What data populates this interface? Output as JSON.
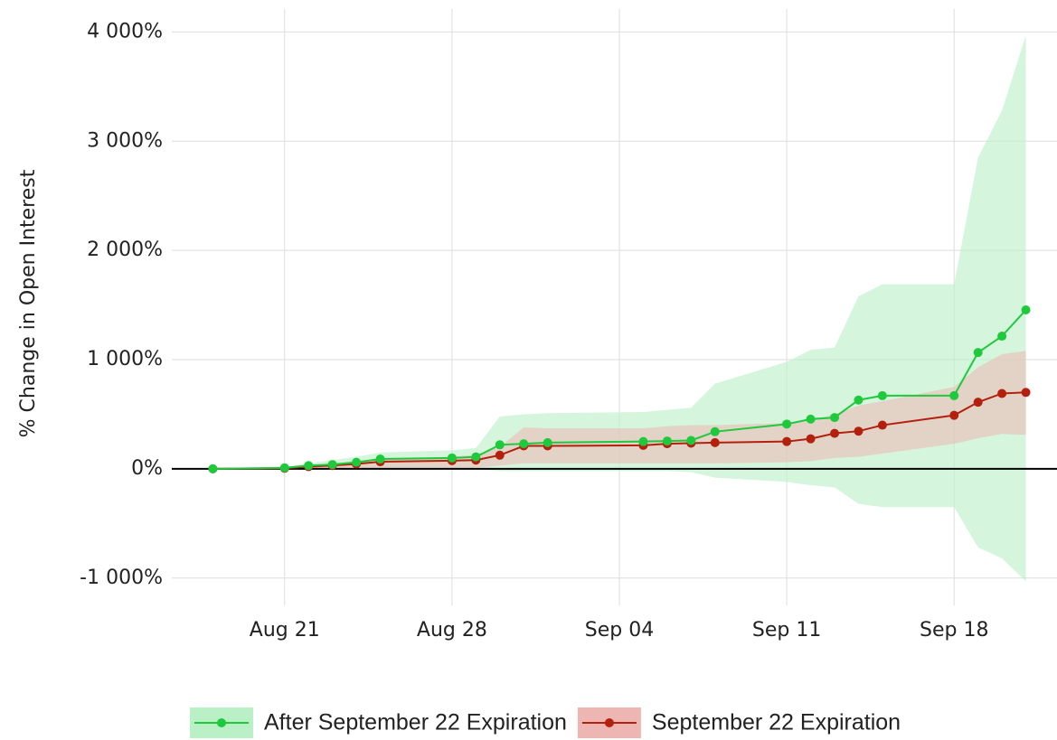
{
  "chart_data": {
    "type": "line",
    "y_label": "% Change in Open Interest",
    "x": [
      "Aug 18",
      "Aug 21",
      "Aug 22",
      "Aug 23",
      "Aug 24",
      "Aug 25",
      "Aug 28",
      "Aug 29",
      "Aug 30",
      "Aug 31",
      "Sep 01",
      "Sep 05",
      "Sep 06",
      "Sep 07",
      "Sep 08",
      "Sep 11",
      "Sep 12",
      "Sep 13",
      "Sep 14",
      "Sep 15",
      "Sep 18",
      "Sep 19",
      "Sep 20",
      "Sep 21"
    ],
    "xlim": [
      "Aug 17",
      "Sep 22"
    ],
    "xticks": [
      "Aug 21",
      "Aug 28",
      "Sep 04",
      "Sep 11",
      "Sep 18"
    ],
    "ylim": [
      -1250,
      4210
    ],
    "yticks": [
      {
        "value": -1000,
        "label": "-1 000%"
      },
      {
        "value": 0,
        "label": "0%"
      },
      {
        "value": 1000,
        "label": "1 000%"
      },
      {
        "value": 2000,
        "label": "2 000%"
      },
      {
        "value": 3000,
        "label": "3 000%"
      },
      {
        "value": 4000,
        "label": "4 000%"
      }
    ],
    "grid": true,
    "legend": "bottom",
    "series": [
      {
        "name": "After September 22 Expiration",
        "color": "#1ec93c",
        "band_color": "#b9f0c6",
        "values": [
          0,
          10,
          30,
          40,
          60,
          90,
          100,
          110,
          220,
          230,
          240,
          250,
          255,
          260,
          340,
          410,
          455,
          470,
          630,
          670,
          670,
          1065,
          1215,
          1455
        ],
        "upper": [
          0,
          10,
          50,
          80,
          110,
          150,
          170,
          190,
          480,
          500,
          510,
          520,
          540,
          560,
          780,
          980,
          1090,
          1110,
          1580,
          1690,
          1690,
          2850,
          3280,
          3970
        ],
        "lower": [
          0,
          0,
          0,
          0,
          0,
          0,
          0,
          0,
          -20,
          -20,
          -20,
          -20,
          -20,
          -30,
          -80,
          -120,
          -150,
          -170,
          -320,
          -350,
          -350,
          -720,
          -820,
          -1030
        ]
      },
      {
        "name": "September 22 Expiration",
        "color": "#b3200e",
        "band_color": "#edb6b3",
        "values": [
          0,
          5,
          20,
          30,
          45,
          65,
          75,
          80,
          125,
          210,
          210,
          215,
          230,
          235,
          240,
          250,
          275,
          325,
          345,
          400,
          490,
          610,
          690,
          700
        ],
        "upper": [
          0,
          10,
          30,
          50,
          70,
          100,
          110,
          130,
          200,
          380,
          370,
          370,
          390,
          400,
          400,
          420,
          440,
          500,
          580,
          620,
          750,
          930,
          1050,
          1080
        ],
        "lower": [
          0,
          0,
          0,
          0,
          0,
          0,
          0,
          10,
          30,
          50,
          50,
          50,
          50,
          50,
          50,
          60,
          70,
          100,
          110,
          140,
          230,
          280,
          320,
          310
        ]
      }
    ]
  }
}
